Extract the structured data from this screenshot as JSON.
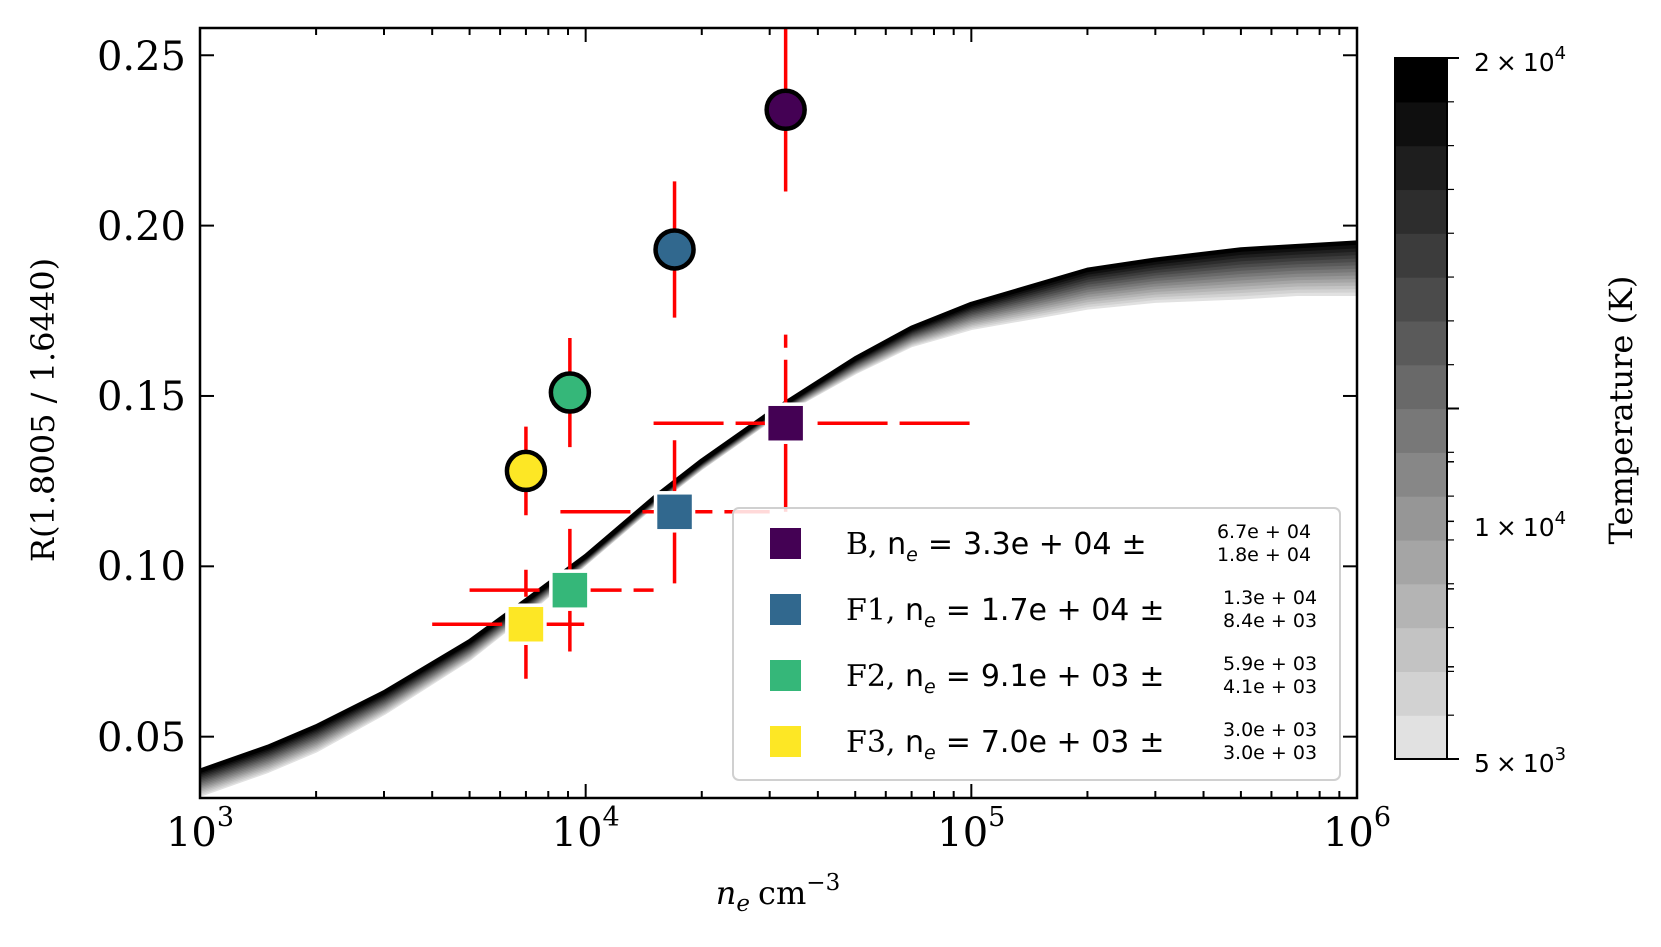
{
  "chart_data": {
    "type": "scatter",
    "xscale": "log",
    "xlim": [
      1000,
      1000000
    ],
    "ylim": [
      0.032,
      0.258
    ],
    "xlabel": {
      "base": "n",
      "sub": "e",
      "unit": "cm",
      "sup": "−3"
    },
    "ylabel": "R(1.8005 / 1.6440)",
    "xticks": [
      {
        "value": 1000,
        "base": "10",
        "exp": "3"
      },
      {
        "value": 10000,
        "base": "10",
        "exp": "4"
      },
      {
        "value": 100000,
        "base": "10",
        "exp": "5"
      },
      {
        "value": 1000000,
        "base": "10",
        "exp": "6"
      }
    ],
    "yticks": [
      {
        "value": 0.05,
        "label": "0.05"
      },
      {
        "value": 0.1,
        "label": "0.10"
      },
      {
        "value": 0.15,
        "label": "0.15"
      },
      {
        "value": 0.2,
        "label": "0.20"
      },
      {
        "value": 0.25,
        "label": "0.25"
      }
    ],
    "model_curves": {
      "description": "Theoretical ratio vs density, one curve per temperature",
      "x": [
        1000,
        1500,
        2000,
        3000,
        5000,
        7000,
        10000,
        15000,
        20000,
        30000,
        50000,
        70000,
        100000,
        200000,
        300000,
        500000,
        700000,
        1000000
      ],
      "hot_y": [
        0.04,
        0.047,
        0.053,
        0.063,
        0.078,
        0.09,
        0.103,
        0.12,
        0.131,
        0.145,
        0.161,
        0.17,
        0.177,
        0.187,
        0.19,
        0.193,
        0.194,
        0.195
      ],
      "cold_y": [
        0.033,
        0.04,
        0.046,
        0.057,
        0.073,
        0.086,
        0.101,
        0.118,
        0.129,
        0.143,
        0.157,
        0.165,
        0.17,
        0.176,
        0.178,
        0.179,
        0.18,
        0.18
      ],
      "temperatures_K": [
        5000,
        6000,
        7000,
        8000,
        9000,
        10000,
        11000,
        12000,
        13000,
        14000,
        15000,
        16000,
        17000,
        18000,
        19000,
        20000
      ]
    },
    "series": [
      {
        "name": "B",
        "color": "#440154",
        "density": {
          "value": 33000,
          "err_plus": 67000,
          "err_minus": 18000
        },
        "measured_ratio": {
          "value": 0.234,
          "err": 0.024
        },
        "model_ratio": {
          "value": 0.142,
          "err": 0.026
        }
      },
      {
        "name": "F1",
        "color": "#31688e",
        "density": {
          "value": 17000,
          "err_plus": 13000,
          "err_minus": 8400
        },
        "measured_ratio": {
          "value": 0.193,
          "err": 0.02
        },
        "model_ratio": {
          "value": 0.116,
          "err": 0.021
        }
      },
      {
        "name": "F2",
        "color": "#35b779",
        "density": {
          "value": 9100,
          "err_plus": 5900,
          "err_minus": 4100
        },
        "measured_ratio": {
          "value": 0.151,
          "err": 0.016
        },
        "model_ratio": {
          "value": 0.093,
          "err": 0.018
        }
      },
      {
        "name": "F3",
        "color": "#fde725",
        "density": {
          "value": 7000,
          "err_plus": 3000,
          "err_minus": 3000
        },
        "measured_ratio": {
          "value": 0.128,
          "err": 0.013
        },
        "model_ratio": {
          "value": 0.083,
          "err": 0.016
        }
      }
    ],
    "error_color": "#ff0000",
    "legend": {
      "position": "lower-right",
      "entries": [
        {
          "label": "B",
          "value": "3.3e + 04",
          "plus": "6.7e + 04",
          "minus": "1.8e + 04",
          "color": "#440154"
        },
        {
          "label": "F1",
          "value": "1.7e + 04",
          "plus": "1.3e + 04",
          "minus": "8.4e + 03",
          "color": "#31688e"
        },
        {
          "label": "F2",
          "value": "9.1e + 03",
          "plus": "5.9e + 03",
          "minus": "4.1e + 03",
          "color": "#35b779"
        },
        {
          "label": "F3",
          "value": "7.0e + 03",
          "plus": "3.0e + 03",
          "minus": "3.0e + 03",
          "color": "#fde725"
        }
      ],
      "equation_prefix": "n",
      "equation_sub": "e",
      "equals": "=",
      "pm": "±"
    },
    "colorbar": {
      "label": "Temperature (K)",
      "min": 5000,
      "max": 20000,
      "levels": 16,
      "ticks": [
        {
          "value": 20000,
          "mant": "2",
          "times": "×",
          "base": "10",
          "exp": "4"
        },
        {
          "value": 10000,
          "mant": "1",
          "times": "×",
          "base": "10",
          "exp": "4"
        },
        {
          "value": 5000,
          "mant": "5",
          "times": "×",
          "base": "10",
          "exp": "3"
        }
      ]
    }
  }
}
